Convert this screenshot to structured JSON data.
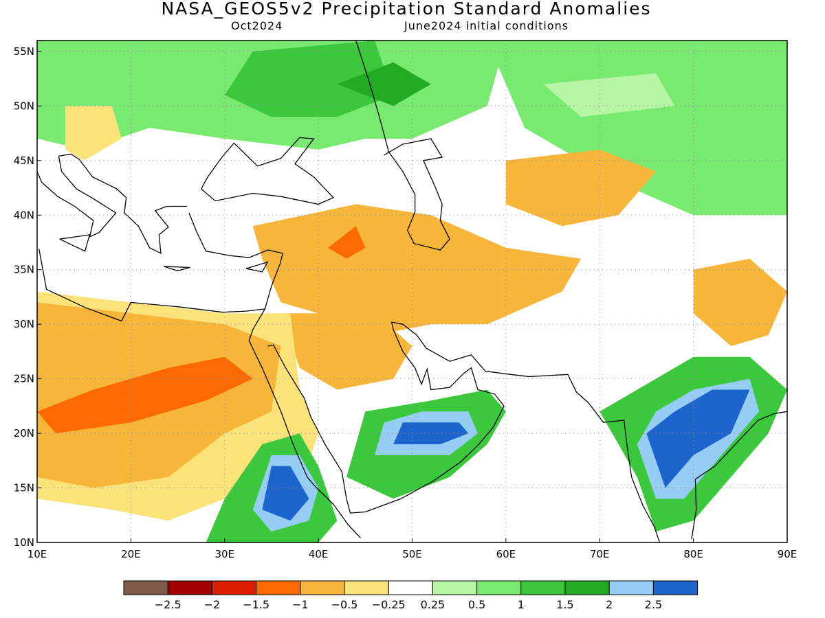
{
  "title": "NASA_GEOS5v2 Precipitation Standard Anomalies",
  "subtitle_left": "Oct2024",
  "subtitle_right": "June2024 initial conditions",
  "map": {
    "lon_range": [
      10,
      90
    ],
    "lat_range": [
      10,
      56
    ],
    "lon_ticks": [
      "10E",
      "20E",
      "30E",
      "40E",
      "50E",
      "60E",
      "70E",
      "80E",
      "90E"
    ],
    "lat_ticks": [
      "55N",
      "50N",
      "45N",
      "40N",
      "35N",
      "30N",
      "25N",
      "20N",
      "15N",
      "10N"
    ]
  },
  "colorbar": {
    "colors": [
      "#7f5a48",
      "#a00000",
      "#dc1e00",
      "#ff6a00",
      "#f7b53a",
      "#fbe37a",
      "#ffffff",
      "#b5f5a4",
      "#78ea70",
      "#3cc83c",
      "#22aa22",
      "#96cdf5",
      "#1e64cd"
    ],
    "labels": [
      "−2.5",
      "−2",
      "−1.5",
      "−1",
      "−0.5",
      "−0.25",
      "0.25",
      "0.5",
      "1",
      "1.5",
      "2",
      "2.5"
    ]
  },
  "regions": [
    {
      "name": "europe-russia-wet",
      "color": "#78ea70",
      "pts": [
        [
          10,
          56
        ],
        [
          60,
          56
        ],
        [
          58,
          50
        ],
        [
          50,
          47
        ],
        [
          45,
          47
        ],
        [
          40,
          46
        ],
        [
          30,
          47
        ],
        [
          22,
          48
        ],
        [
          15,
          46
        ],
        [
          10,
          47
        ]
      ]
    },
    {
      "name": "ukraine-wet-core",
      "color": "#3cc83c",
      "pts": [
        [
          33,
          55
        ],
        [
          46,
          56
        ],
        [
          48,
          51
        ],
        [
          42,
          49
        ],
        [
          35,
          49
        ],
        [
          30,
          51
        ]
      ]
    },
    {
      "name": "caspian-wet-core",
      "color": "#22aa22",
      "pts": [
        [
          42,
          52
        ],
        [
          48,
          54
        ],
        [
          52,
          52
        ],
        [
          48,
          50
        ]
      ]
    },
    {
      "name": "central-asia-wet",
      "color": "#78ea70",
      "pts": [
        [
          58,
          56
        ],
        [
          90,
          56
        ],
        [
          90,
          40
        ],
        [
          80,
          40
        ],
        [
          72,
          43
        ],
        [
          62,
          48
        ]
      ]
    },
    {
      "name": "siberia-light",
      "color": "#b5f5a4",
      "pts": [
        [
          64,
          52
        ],
        [
          76,
          53
        ],
        [
          78,
          50
        ],
        [
          68,
          49
        ]
      ]
    },
    {
      "name": "kazakh-dry",
      "color": "#f7b53a",
      "pts": [
        [
          60,
          45
        ],
        [
          70,
          46
        ],
        [
          76,
          44
        ],
        [
          72,
          40
        ],
        [
          66,
          39
        ],
        [
          60,
          41
        ]
      ]
    },
    {
      "name": "balkan-dry",
      "color": "#fbe37a",
      "pts": [
        [
          13,
          50
        ],
        [
          18,
          50
        ],
        [
          19,
          47
        ],
        [
          15,
          45
        ],
        [
          13,
          46
        ]
      ]
    },
    {
      "name": "anatolia-iran-dry",
      "color": "#f7b53a",
      "pts": [
        [
          33,
          39
        ],
        [
          44,
          41
        ],
        [
          52,
          40
        ],
        [
          60,
          37
        ],
        [
          68,
          36
        ],
        [
          66,
          33
        ],
        [
          58,
          30
        ],
        [
          52,
          30
        ],
        [
          46,
          29
        ],
        [
          40,
          31
        ],
        [
          36,
          32
        ],
        [
          34,
          36
        ]
      ]
    },
    {
      "name": "arabia-north-dry",
      "color": "#f7b53a",
      "pts": [
        [
          36,
          31
        ],
        [
          46,
          31
        ],
        [
          50,
          28
        ],
        [
          48,
          25
        ],
        [
          42,
          24
        ],
        [
          38,
          26
        ]
      ]
    },
    {
      "name": "east-turkey-very-dry",
      "color": "#ff6a00",
      "pts": [
        [
          41,
          37
        ],
        [
          44,
          39
        ],
        [
          45,
          37
        ],
        [
          43,
          36
        ]
      ]
    },
    {
      "name": "sahara-light-dry",
      "color": "#fbe37a",
      "pts": [
        [
          10,
          33
        ],
        [
          20,
          32
        ],
        [
          30,
          31
        ],
        [
          37,
          31
        ],
        [
          38,
          24
        ],
        [
          40,
          20
        ],
        [
          38,
          15
        ],
        [
          30,
          14
        ],
        [
          24,
          12
        ],
        [
          18,
          13
        ],
        [
          10,
          14
        ]
      ]
    },
    {
      "name": "sahara-dry",
      "color": "#f7b53a",
      "pts": [
        [
          10,
          32
        ],
        [
          20,
          31
        ],
        [
          30,
          30
        ],
        [
          36,
          28
        ],
        [
          35,
          22
        ],
        [
          30,
          20
        ],
        [
          24,
          16
        ],
        [
          16,
          15
        ],
        [
          10,
          16
        ]
      ]
    },
    {
      "name": "sahara-very-dry",
      "color": "#ff6a00",
      "pts": [
        [
          10,
          22
        ],
        [
          16,
          24
        ],
        [
          24,
          26
        ],
        [
          30,
          27
        ],
        [
          33,
          25
        ],
        [
          28,
          23
        ],
        [
          20,
          21
        ],
        [
          12,
          20
        ]
      ]
    },
    {
      "name": "ethiopia-wet",
      "color": "#3cc83c",
      "pts": [
        [
          28,
          10
        ],
        [
          30,
          14
        ],
        [
          34,
          19
        ],
        [
          38,
          20
        ],
        [
          40,
          17
        ],
        [
          42,
          12
        ],
        [
          40,
          10
        ]
      ]
    },
    {
      "name": "ethiopia-light",
      "color": "#96cdf5",
      "pts": [
        [
          33,
          13
        ],
        [
          35,
          18
        ],
        [
          38,
          18
        ],
        [
          40,
          15
        ],
        [
          39,
          12
        ],
        [
          35,
          11
        ]
      ]
    },
    {
      "name": "ethiopia-core",
      "color": "#1e64cd",
      "pts": [
        [
          34,
          13
        ],
        [
          35,
          17
        ],
        [
          37,
          17
        ],
        [
          39,
          14
        ],
        [
          37,
          12
        ]
      ]
    },
    {
      "name": "oman-yemen-wet",
      "color": "#3cc83c",
      "pts": [
        [
          43,
          16
        ],
        [
          45,
          22
        ],
        [
          52,
          23
        ],
        [
          58,
          24
        ],
        [
          60,
          22
        ],
        [
          58,
          19
        ],
        [
          54,
          16
        ],
        [
          48,
          14
        ]
      ]
    },
    {
      "name": "oman-light",
      "color": "#96cdf5",
      "pts": [
        [
          46,
          18
        ],
        [
          47,
          21
        ],
        [
          51,
          22
        ],
        [
          56,
          22
        ],
        [
          57,
          20
        ],
        [
          54,
          18
        ]
      ]
    },
    {
      "name": "oman-core",
      "color": "#1e64cd",
      "pts": [
        [
          48,
          19
        ],
        [
          49,
          21
        ],
        [
          51,
          21
        ],
        [
          55,
          21
        ],
        [
          56,
          20
        ],
        [
          53,
          19
        ]
      ]
    },
    {
      "name": "india-wet",
      "color": "#3cc83c",
      "pts": [
        [
          70,
          22
        ],
        [
          74,
          24
        ],
        [
          80,
          27
        ],
        [
          86,
          27
        ],
        [
          90,
          24
        ],
        [
          88,
          20
        ],
        [
          84,
          16
        ],
        [
          80,
          12
        ],
        [
          76,
          11
        ],
        [
          74,
          16
        ]
      ]
    },
    {
      "name": "india-light",
      "color": "#96cdf5",
      "pts": [
        [
          74,
          19
        ],
        [
          76,
          22
        ],
        [
          80,
          24
        ],
        [
          86,
          25
        ],
        [
          87,
          22
        ],
        [
          83,
          18
        ],
        [
          79,
          14
        ],
        [
          76,
          14
        ]
      ]
    },
    {
      "name": "india-core",
      "color": "#1e64cd",
      "pts": [
        [
          75,
          20
        ],
        [
          78,
          22
        ],
        [
          82,
          24
        ],
        [
          86,
          24
        ],
        [
          84,
          20
        ],
        [
          80,
          18
        ],
        [
          77,
          15
        ]
      ]
    },
    {
      "name": "himalaya-dry",
      "color": "#f7b53a",
      "pts": [
        [
          80,
          35
        ],
        [
          86,
          36
        ],
        [
          90,
          33
        ],
        [
          88,
          29
        ],
        [
          84,
          28
        ],
        [
          80,
          31
        ]
      ]
    }
  ]
}
